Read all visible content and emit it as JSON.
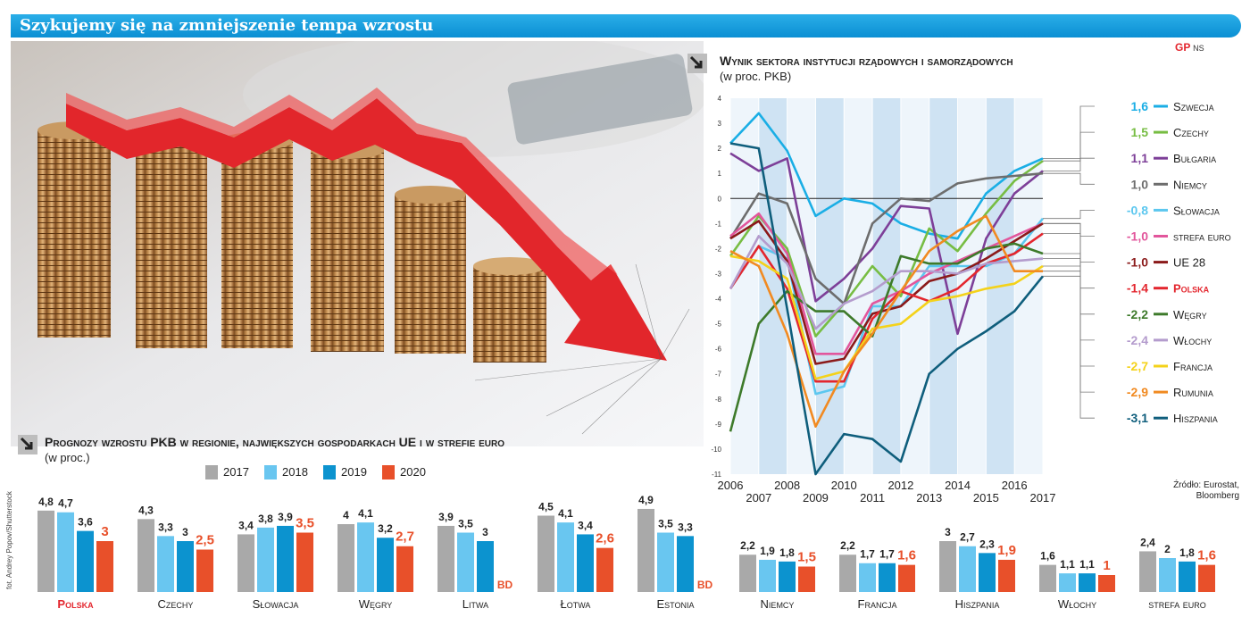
{
  "banner": {
    "title": "Szykujemy się na zmniejszenie tempa wzrostu"
  },
  "corner": {
    "logo": "GP",
    "tag": "NS"
  },
  "credit": "fot. Andrey Popov/Shutterstock",
  "source": {
    "line1": "Źródło: Eurostat,",
    "line2": "Bloomberg"
  },
  "colors": {
    "2017": "#a9a9a9",
    "2018": "#69c6f0",
    "2019": "#0c93cf",
    "2020": "#e8502a",
    "banner": "#1aa1de",
    "highlight": "#e3262e"
  },
  "chart_data": [
    {
      "type": "line",
      "title": "Wynik sektora instytucji rządowych i samorządowych",
      "subtitle": "(w proc. PKB)",
      "x": [
        2006,
        2007,
        2008,
        2009,
        2010,
        2011,
        2012,
        2013,
        2014,
        2015,
        2016,
        2017
      ],
      "ylim": [
        -11,
        4
      ],
      "yticks": [
        4,
        3,
        2,
        1,
        0,
        -1,
        -2,
        -3,
        -4,
        -5,
        -6,
        -7,
        -8,
        -9,
        -10,
        -11
      ],
      "grid": "vertical bands",
      "legend": "right",
      "series": [
        {
          "name": "Szwecja",
          "label": "1,6",
          "color": "#1aaee5",
          "values": [
            2.2,
            3.4,
            1.9,
            -0.7,
            0.0,
            -0.2,
            -1.0,
            -1.4,
            -1.6,
            0.2,
            1.1,
            1.6
          ]
        },
        {
          "name": "Czechy",
          "label": "1,5",
          "color": "#77bd43",
          "values": [
            -2.3,
            -0.7,
            -2.0,
            -5.5,
            -4.2,
            -2.7,
            -3.9,
            -1.2,
            -2.1,
            -0.6,
            0.7,
            1.5
          ]
        },
        {
          "name": "Bułgaria",
          "label": "1,1",
          "color": "#7d3f98",
          "values": [
            1.8,
            1.1,
            1.6,
            -4.1,
            -3.2,
            -2.0,
            -0.3,
            -0.4,
            -5.4,
            -1.6,
            0.2,
            1.1
          ]
        },
        {
          "name": "Niemcy",
          "label": "1,0",
          "color": "#6d6d6d",
          "values": [
            -1.6,
            0.2,
            -0.2,
            -3.2,
            -4.2,
            -1.0,
            0.0,
            -0.1,
            0.6,
            0.8,
            0.9,
            1.0
          ]
        },
        {
          "name": "Słowacja",
          "label": "-0,8",
          "color": "#5cc7ef",
          "values": [
            -3.6,
            -1.9,
            -2.4,
            -7.8,
            -7.5,
            -4.3,
            -4.3,
            -2.7,
            -2.7,
            -2.7,
            -2.2,
            -0.8
          ]
        },
        {
          "name": "strefa euro",
          "label": "-1,0",
          "color": "#e2569c",
          "values": [
            -1.5,
            -0.6,
            -2.2,
            -6.2,
            -6.2,
            -4.2,
            -3.7,
            -3.0,
            -2.5,
            -2.0,
            -1.5,
            -1.0
          ]
        },
        {
          "name": "UE 28",
          "label": "-1,0",
          "color": "#8b1a1a",
          "values": [
            -1.6,
            -0.9,
            -2.5,
            -6.6,
            -6.4,
            -4.6,
            -4.3,
            -3.3,
            -3.0,
            -2.4,
            -1.7,
            -1.0
          ]
        },
        {
          "name": "Polska",
          "label": "-1,4",
          "color": "#e3262e",
          "values": [
            -3.6,
            -1.9,
            -3.6,
            -7.3,
            -7.3,
            -4.8,
            -3.7,
            -4.1,
            -3.6,
            -2.6,
            -2.2,
            -1.4
          ]
        },
        {
          "name": "Węgry",
          "label": "-2,2",
          "color": "#3d7a2a",
          "values": [
            -9.3,
            -5.0,
            -3.7,
            -4.5,
            -4.5,
            -5.5,
            -2.3,
            -2.6,
            -2.6,
            -2.0,
            -1.8,
            -2.2
          ]
        },
        {
          "name": "Włochy",
          "label": "-2,4",
          "color": "#b49ccd",
          "values": [
            -3.6,
            -1.5,
            -2.6,
            -5.2,
            -4.2,
            -3.7,
            -2.9,
            -2.9,
            -3.0,
            -2.6,
            -2.5,
            -2.4
          ]
        },
        {
          "name": "Francja",
          "label": "-2,7",
          "color": "#f4d21a",
          "values": [
            -2.3,
            -2.5,
            -3.2,
            -7.2,
            -6.9,
            -5.2,
            -5.0,
            -4.1,
            -3.9,
            -3.6,
            -3.4,
            -2.7
          ]
        },
        {
          "name": "Rumunia",
          "label": "-2,9",
          "color": "#f18a21",
          "values": [
            -2.1,
            -2.7,
            -5.4,
            -9.1,
            -6.9,
            -5.4,
            -3.7,
            -2.1,
            -1.3,
            -0.7,
            -2.9,
            -2.9
          ]
        },
        {
          "name": "Hiszpania",
          "label": "-3,1",
          "color": "#0f5e7c",
          "values": [
            2.2,
            2.0,
            -4.4,
            -11.0,
            -9.4,
            -9.6,
            -10.5,
            -7.0,
            -6.0,
            -5.3,
            -4.5,
            -3.1
          ]
        }
      ]
    },
    {
      "type": "bar",
      "title": "Prognozy wzrostu PKB w regionie, największych gospodarkach UE i w strefie euro",
      "subtitle": "(w proc.)",
      "legend": "top",
      "series_names": [
        "2017",
        "2018",
        "2019",
        "2020"
      ],
      "na_label": "BD",
      "groups": [
        {
          "name": "Polska",
          "values": [
            4.8,
            4.7,
            3.6,
            3.0
          ],
          "labels": [
            "4,8",
            "4,7",
            "3,6",
            "3"
          ],
          "highlight": true
        },
        {
          "name": "Czechy",
          "values": [
            4.3,
            3.3,
            3.0,
            2.5
          ],
          "labels": [
            "4,3",
            "3,3",
            "3",
            "2,5"
          ]
        },
        {
          "name": "Słowacja",
          "values": [
            3.4,
            3.8,
            3.9,
            3.5
          ],
          "labels": [
            "3,4",
            "3,8",
            "3,9",
            "3,5"
          ]
        },
        {
          "name": "Węgry",
          "values": [
            4.0,
            4.1,
            3.2,
            2.7
          ],
          "labels": [
            "4",
            "4,1",
            "3,2",
            "2,7"
          ]
        },
        {
          "name": "Litwa",
          "values": [
            3.9,
            3.5,
            3.0,
            null
          ],
          "labels": [
            "3,9",
            "3,5",
            "3",
            "BD"
          ]
        },
        {
          "name": "Łotwa",
          "values": [
            4.5,
            4.1,
            3.4,
            2.6
          ],
          "labels": [
            "4,5",
            "4,1",
            "3,4",
            "2,6"
          ]
        },
        {
          "name": "Estonia",
          "values": [
            4.9,
            3.5,
            3.3,
            null
          ],
          "labels": [
            "4,9",
            "3,5",
            "3,3",
            "BD"
          ]
        },
        {
          "name": "Niemcy",
          "values": [
            2.2,
            1.9,
            1.8,
            1.5
          ],
          "labels": [
            "2,2",
            "1,9",
            "1,8",
            "1,5"
          ]
        },
        {
          "name": "Francja",
          "values": [
            2.2,
            1.7,
            1.7,
            1.6
          ],
          "labels": [
            "2,2",
            "1,7",
            "1,7",
            "1,6"
          ]
        },
        {
          "name": "Hiszpania",
          "values": [
            3.0,
            2.7,
            2.3,
            1.9
          ],
          "labels": [
            "3",
            "2,7",
            "2,3",
            "1,9"
          ]
        },
        {
          "name": "Włochy",
          "values": [
            1.6,
            1.1,
            1.1,
            1.0
          ],
          "labels": [
            "1,6",
            "1,1",
            "1,1",
            "1"
          ]
        },
        {
          "name": "strefa euro",
          "values": [
            2.4,
            2.0,
            1.8,
            1.6
          ],
          "labels": [
            "2,4",
            "2",
            "1,8",
            "1,6"
          ]
        }
      ]
    }
  ]
}
